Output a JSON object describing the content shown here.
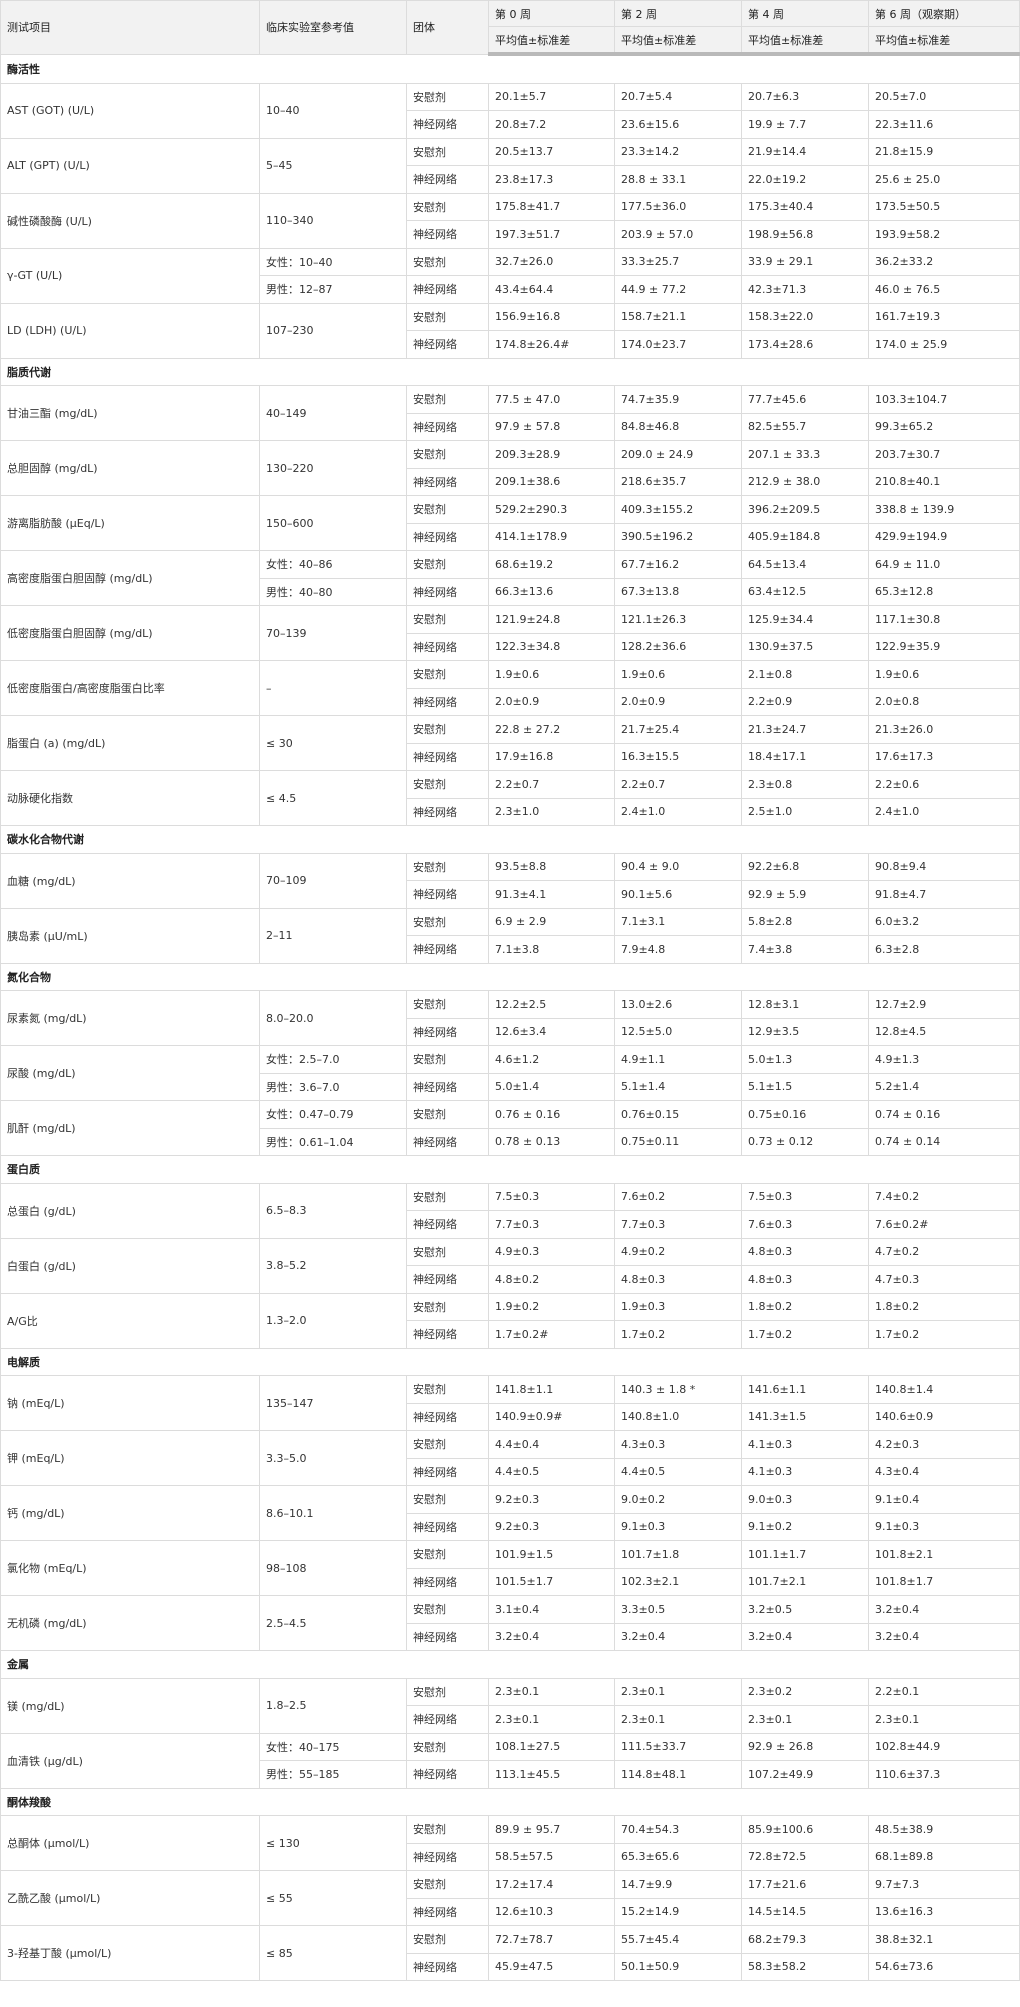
{
  "header": {
    "columns": [
      "测试项目",
      "临床实验室参考值",
      "团体",
      "第 0 周",
      "第 2 周",
      "第 4 周",
      "第 6 周（观察期）"
    ],
    "subheader": "平均值±标准差"
  },
  "groups": [
    "安慰剂",
    "神经网络"
  ],
  "sections": [
    {
      "title": "酶活性",
      "items": [
        {
          "name": "AST (GOT) (U/L)",
          "ref": "10–40",
          "placebo": [
            "20.1±5.7",
            "20.7±5.4",
            "20.7±6.3",
            "20.5±7.0"
          ],
          "nn": [
            "20.8±7.2",
            "23.6±15.6",
            "19.9 ± 7.7",
            "22.3±11.6"
          ]
        },
        {
          "name": "ALT (GPT) (U/L)",
          "ref": "5–45",
          "placebo": [
            "20.5±13.7",
            "23.3±14.2",
            "21.9±14.4",
            "21.8±15.9"
          ],
          "nn": [
            "23.8±17.3",
            "28.8 ± 33.1",
            "22.0±19.2",
            "25.6 ± 25.0"
          ]
        },
        {
          "name": "碱性磷酸酶 (U/L)",
          "ref": "110–340",
          "placebo": [
            "175.8±41.7",
            "177.5±36.0",
            "175.3±40.4",
            "173.5±50.5"
          ],
          "nn": [
            "197.3±51.7",
            "203.9 ± 57.0",
            "198.9±56.8",
            "193.9±58.2"
          ]
        },
        {
          "name": "γ-GT (U/L)",
          "ref": [
            "女性：10–40",
            "男性：12–87"
          ],
          "placebo": [
            "32.7±26.0",
            "33.3±25.7",
            "33.9 ± 29.1",
            "36.2±33.2"
          ],
          "nn": [
            "43.4±64.4",
            "44.9 ± 77.2",
            "42.3±71.3",
            "46.0 ± 76.5"
          ]
        },
        {
          "name": "LD (LDH) (U/L)",
          "ref": "107–230",
          "placebo": [
            "156.9±16.8",
            "158.7±21.1",
            "158.3±22.0",
            "161.7±19.3"
          ],
          "nn": [
            "174.8±26.4#",
            "174.0±23.7",
            "173.4±28.6",
            "174.0 ± 25.9"
          ]
        }
      ]
    },
    {
      "title": "脂质代谢",
      "items": [
        {
          "name": "甘油三酯 (mg/dL)",
          "ref": "40–149",
          "placebo": [
            "77.5 ± 47.0",
            "74.7±35.9",
            "77.7±45.6",
            "103.3±104.7"
          ],
          "nn": [
            "97.9 ± 57.8",
            "84.8±46.8",
            "82.5±55.7",
            "99.3±65.2"
          ]
        },
        {
          "name": "总胆固醇 (mg/dL)",
          "ref": "130–220",
          "placebo": [
            "209.3±28.9",
            "209.0 ± 24.9",
            "207.1 ± 33.3",
            "203.7±30.7"
          ],
          "nn": [
            "209.1±38.6",
            "218.6±35.7",
            "212.9 ± 38.0",
            "210.8±40.1"
          ]
        },
        {
          "name": "游离脂肪酸 (µEq/L)",
          "ref": "150–600",
          "placebo": [
            "529.2±290.3",
            "409.3±155.2",
            "396.2±209.5",
            "338.8 ± 139.9"
          ],
          "nn": [
            "414.1±178.9",
            "390.5±196.2",
            "405.9±184.8",
            "429.9±194.9"
          ]
        },
        {
          "name": "高密度脂蛋白胆固醇 (mg/dL)",
          "ref": [
            "女性：40–86",
            "男性：40–80"
          ],
          "placebo": [
            "68.6±19.2",
            "67.7±16.2",
            "64.5±13.4",
            "64.9 ± 11.0"
          ],
          "nn": [
            "66.3±13.6",
            "67.3±13.8",
            "63.4±12.5",
            "65.3±12.8"
          ]
        },
        {
          "name": "低密度脂蛋白胆固醇 (mg/dL)",
          "ref": "70–139",
          "placebo": [
            "121.9±24.8",
            "121.1±26.3",
            "125.9±34.4",
            "117.1±30.8"
          ],
          "nn": [
            "122.3±34.8",
            "128.2±36.6",
            "130.9±37.5",
            "122.9±35.9"
          ]
        },
        {
          "name": "低密度脂蛋白/高密度脂蛋白比率",
          "ref": "–",
          "placebo": [
            "1.9±0.6",
            "1.9±0.6",
            "2.1±0.8",
            "1.9±0.6"
          ],
          "nn": [
            "2.0±0.9",
            "2.0±0.9",
            "2.2±0.9",
            "2.0±0.8"
          ]
        },
        {
          "name": "脂蛋白 (a) (mg/dL)",
          "ref": "≤ 30",
          "placebo": [
            "22.8 ± 27.2",
            "21.7±25.4",
            "21.3±24.7",
            "21.3±26.0"
          ],
          "nn": [
            "17.9±16.8",
            "16.3±15.5",
            "18.4±17.1",
            "17.6±17.3"
          ]
        },
        {
          "name": "动脉硬化指数",
          "ref": "≤ 4.5",
          "placebo": [
            "2.2±0.7",
            "2.2±0.7",
            "2.3±0.8",
            "2.2±0.6"
          ],
          "nn": [
            "2.3±1.0",
            "2.4±1.0",
            "2.5±1.0",
            "2.4±1.0"
          ]
        }
      ]
    },
    {
      "title": "碳水化合物代谢",
      "items": [
        {
          "name": "血糖 (mg/dL)",
          "ref": "70–109",
          "placebo": [
            "93.5±8.8",
            "90.4 ± 9.0",
            "92.2±6.8",
            "90.8±9.4"
          ],
          "nn": [
            "91.3±4.1",
            "90.1±5.6",
            "92.9 ± 5.9",
            "91.8±4.7"
          ]
        },
        {
          "name": "胰岛素 (µU/mL)",
          "ref": "2–11",
          "placebo": [
            "6.9 ± 2.9",
            "7.1±3.1",
            "5.8±2.8",
            "6.0±3.2"
          ],
          "nn": [
            "7.1±3.8",
            "7.9±4.8",
            "7.4±3.8",
            "6.3±2.8"
          ]
        }
      ]
    },
    {
      "title": "氮化合物",
      "items": [
        {
          "name": "尿素氮 (mg/dL)",
          "ref": "8.0–20.0",
          "placebo": [
            "12.2±2.5",
            "13.0±2.6",
            "12.8±3.1",
            "12.7±2.9"
          ],
          "nn": [
            "12.6±3.4",
            "12.5±5.0",
            "12.9±3.5",
            "12.8±4.5"
          ]
        },
        {
          "name": "尿酸 (mg/dL)",
          "ref": [
            "女性：2.5–7.0",
            "男性：3.6–7.0"
          ],
          "placebo": [
            "4.6±1.2",
            "4.9±1.1",
            "5.0±1.3",
            "4.9±1.3"
          ],
          "nn": [
            "5.0±1.4",
            "5.1±1.4",
            "5.1±1.5",
            "5.2±1.4"
          ]
        },
        {
          "name": "肌酐 (mg/dL)",
          "ref": [
            "女性：0.47–0.79",
            "男性：0.61–1.04"
          ],
          "placebo": [
            "0.76 ± 0.16",
            "0.76±0.15",
            "0.75±0.16",
            "0.74 ± 0.16"
          ],
          "nn": [
            "0.78 ± 0.13",
            "0.75±0.11",
            "0.73 ± 0.12",
            "0.74 ± 0.14"
          ]
        }
      ]
    },
    {
      "title": "蛋白质",
      "items": [
        {
          "name": "总蛋白 (g/dL)",
          "ref": "6.5–8.3",
          "placebo": [
            "7.5±0.3",
            "7.6±0.2",
            "7.5±0.3",
            "7.4±0.2"
          ],
          "nn": [
            "7.7±0.3",
            "7.7±0.3",
            "7.6±0.3",
            "7.6±0.2#"
          ]
        },
        {
          "name": "白蛋白 (g/dL)",
          "ref": "3.8–5.2",
          "placebo": [
            "4.9±0.3",
            "4.9±0.2",
            "4.8±0.3",
            "4.7±0.2"
          ],
          "nn": [
            "4.8±0.2",
            "4.8±0.3",
            "4.8±0.3",
            "4.7±0.3"
          ]
        },
        {
          "name": "A/G比",
          "ref": "1.3–2.0",
          "placebo": [
            "1.9±0.2",
            "1.9±0.3",
            "1.8±0.2",
            "1.8±0.2"
          ],
          "nn": [
            "1.7±0.2#",
            "1.7±0.2",
            "1.7±0.2",
            "1.7±0.2"
          ]
        }
      ]
    },
    {
      "title": "电解质",
      "items": [
        {
          "name": "钠 (mEq/L)",
          "ref": "135–147",
          "placebo": [
            "141.8±1.1",
            "140.3 ± 1.8 *",
            "141.6±1.1",
            "140.8±1.4"
          ],
          "nn": [
            "140.9±0.9#",
            "140.8±1.0",
            "141.3±1.5",
            "140.6±0.9"
          ]
        },
        {
          "name": "钾 (mEq/L)",
          "ref": "3.3–5.0",
          "placebo": [
            "4.4±0.4",
            "4.3±0.3",
            "4.1±0.3",
            "4.2±0.3"
          ],
          "nn": [
            "4.4±0.5",
            "4.4±0.5",
            "4.1±0.3",
            "4.3±0.4"
          ]
        },
        {
          "name": "钙 (mg/dL)",
          "ref": "8.6–10.1",
          "placebo": [
            "9.2±0.3",
            "9.0±0.2",
            "9.0±0.3",
            "9.1±0.4"
          ],
          "nn": [
            "9.2±0.3",
            "9.1±0.3",
            "9.1±0.2",
            "9.1±0.3"
          ]
        },
        {
          "name": "氯化物 (mEq/L)",
          "ref": "98–108",
          "placebo": [
            "101.9±1.5",
            "101.7±1.8",
            "101.1±1.7",
            "101.8±2.1"
          ],
          "nn": [
            "101.5±1.7",
            "102.3±2.1",
            "101.7±2.1",
            "101.8±1.7"
          ]
        },
        {
          "name": "无机磷 (mg/dL)",
          "ref": "2.5–4.5",
          "placebo": [
            "3.1±0.4",
            "3.3±0.5",
            "3.2±0.5",
            "3.2±0.4"
          ],
          "nn": [
            "3.2±0.4",
            "3.2±0.4",
            "3.2±0.4",
            "3.2±0.4"
          ]
        }
      ]
    },
    {
      "title": "金属",
      "items": [
        {
          "name": "镁 (mg/dL)",
          "ref": "1.8–2.5",
          "placebo": [
            "2.3±0.1",
            "2.3±0.1",
            "2.3±0.2",
            "2.2±0.1"
          ],
          "nn": [
            "2.3±0.1",
            "2.3±0.1",
            "2.3±0.1",
            "2.3±0.1"
          ]
        },
        {
          "name": "血清铁 (µg/dL)",
          "ref": [
            "女性：40–175",
            "男性：55–185"
          ],
          "placebo": [
            "108.1±27.5",
            "111.5±33.7",
            "92.9 ± 26.8",
            "102.8±44.9"
          ],
          "nn": [
            "113.1±45.5",
            "114.8±48.1",
            "107.2±49.9",
            "110.6±37.3"
          ]
        }
      ]
    },
    {
      "title": "酮体羧酸",
      "items": [
        {
          "name": "总酮体 (µmol/L)",
          "ref": "≤ 130",
          "placebo": [
            "89.9 ± 95.7",
            "70.4±54.3",
            "85.9±100.6",
            "48.5±38.9"
          ],
          "nn": [
            "58.5±57.5",
            "65.3±65.6",
            "72.8±72.5",
            "68.1±89.8"
          ]
        },
        {
          "name": "乙酰乙酸 (µmol/L)",
          "ref": "≤ 55",
          "placebo": [
            "17.2±17.4",
            "14.7±9.9",
            "17.7±21.6",
            "9.7±7.3"
          ],
          "nn": [
            "12.6±10.3",
            "15.2±14.9",
            "14.5±14.5",
            "13.6±16.3"
          ]
        },
        {
          "name": "3-羟基丁酸 (µmol/L)",
          "ref": "≤ 85",
          "placebo": [
            "72.7±78.7",
            "55.7±45.4",
            "68.2±79.3",
            "38.8±32.1"
          ],
          "nn": [
            "45.9±47.5",
            "50.1±50.9",
            "58.3±58.2",
            "54.6±73.6"
          ]
        }
      ]
    }
  ]
}
